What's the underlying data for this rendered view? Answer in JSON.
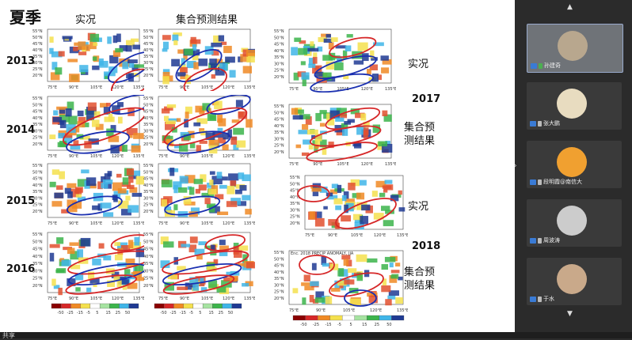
{
  "slide": {
    "title": "夏季",
    "col_observed": "实况",
    "col_ensemble": "集合预测结果",
    "years": [
      "2013",
      "2014",
      "2015",
      "2016"
    ],
    "right_year_2017": "2017",
    "right_year_2018": "2018",
    "right_observed": "实况",
    "right_ensemble_2017": "集合预\n测结果",
    "right_ensemble_2018": "集合预\n测结果",
    "map_lat_ticks": [
      "55°N",
      "50°N",
      "45°N",
      "40°N",
      "35°N",
      "30°N",
      "25°N",
      "20°N"
    ],
    "map_lon_ticks": [
      "75°E",
      "90°E",
      "105°E",
      "120°E",
      "135°E"
    ],
    "colorbar_ticks": [
      "-50",
      "-25",
      "-15",
      "-5",
      "5",
      "15",
      "25",
      "50"
    ],
    "map_2018_title": "Enc. 2018 PRECIP ANOMALY, JJA"
  },
  "participants": [
    {
      "name": "孙建奇",
      "active": true
    },
    {
      "name": "张大鹏",
      "active": false
    },
    {
      "name": "段明霞@南信大",
      "active": false
    },
    {
      "name": "周波涛",
      "active": false
    },
    {
      "name": "于水",
      "active": false
    }
  ],
  "bottom_text": "共享",
  "colors": {
    "red": "#d62728",
    "blue": "#1a2fb0",
    "orange": "#f08a24",
    "yellow": "#f4e04d",
    "green": "#3cb44b",
    "cyan": "#3fb5e8",
    "navy": "#1f3a93"
  }
}
